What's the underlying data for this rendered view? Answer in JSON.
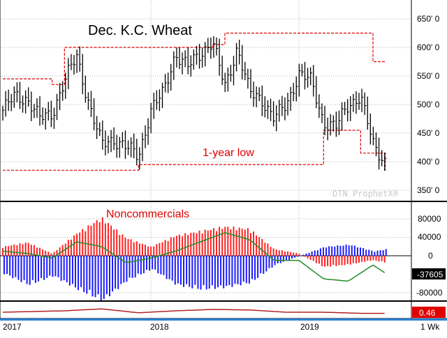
{
  "chart_data": [
    {
      "type": "line",
      "title": "Dec. K.C. Wheat",
      "watermark": "DTN ProphetX®",
      "annotation": "1-year low",
      "x_axis": {
        "ticks": [
          "2017",
          "2018",
          "2019"
        ],
        "timeframe": "1 Wk"
      },
      "y_axis": {
        "ticks": [
          "650' 0",
          "600' 0",
          "550' 0",
          "500' 0",
          "450' 0",
          "400' 0",
          "350' 0"
        ],
        "ylim": [
          340,
          660
        ]
      },
      "colors": {
        "price": "#000000",
        "low_line": "#e00000",
        "grid": "#b0b0b0"
      },
      "series": [
        {
          "role": "weekly price bars (close)",
          "x": [
            "2017-01",
            "2017-02",
            "2017-03",
            "2017-04",
            "2017-05",
            "2017-06",
            "2017-07",
            "2017-08",
            "2017-09",
            "2017-10",
            "2017-11",
            "2017-12",
            "2018-01",
            "2018-02",
            "2018-03",
            "2018-04",
            "2018-05",
            "2018-06",
            "2018-07",
            "2018-08",
            "2018-09",
            "2018-10",
            "2018-11",
            "2018-12",
            "2019-01",
            "2019-02",
            "2019-03",
            "2019-04",
            "2019-05",
            "2019-06",
            "2019-07",
            "2019-08"
          ],
          "values": [
            490,
            515,
            510,
            475,
            485,
            540,
            585,
            500,
            430,
            440,
            425,
            410,
            490,
            520,
            590,
            565,
            590,
            610,
            530,
            600,
            520,
            510,
            475,
            500,
            555,
            540,
            470,
            460,
            500,
            515,
            430,
            400
          ]
        },
        {
          "role": "1-year low",
          "x": [
            "2017-01",
            "2017-05",
            "2017-06",
            "2017-09",
            "2017-12",
            "2018-03",
            "2018-06",
            "2018-07",
            "2018-09",
            "2018-12",
            "2019-03",
            "2019-04",
            "2019-06",
            "2019-07",
            "2019-08"
          ],
          "values": [
            385,
            385,
            385,
            385,
            395,
            395,
            395,
            395,
            395,
            395,
            455,
            455,
            415,
            415,
            385
          ]
        },
        {
          "role": "1-year high",
          "x": [
            "2017-01",
            "2017-05",
            "2017-06",
            "2017-09",
            "2017-12",
            "2018-03",
            "2018-06",
            "2018-07",
            "2018-09",
            "2018-12",
            "2019-03",
            "2019-04",
            "2019-06",
            "2019-07",
            "2019-08"
          ],
          "values": [
            545,
            535,
            600,
            600,
            600,
            600,
            605,
            625,
            625,
            625,
            625,
            625,
            625,
            575,
            575
          ]
        }
      ]
    },
    {
      "type": "bar",
      "title": "Noncommercials",
      "y_axis": {
        "ticks": [
          "80000",
          "40000",
          "0",
          "-80000"
        ],
        "ylim": [
          -105000,
          105000
        ]
      },
      "last_value_label": "-37605",
      "colors": {
        "long": "#ff2020",
        "short": "#1a1aff",
        "net": "#228b22"
      },
      "series": [
        {
          "name": "long",
          "x": [
            "2017-01",
            "2017-03",
            "2017-05",
            "2017-07",
            "2017-09",
            "2017-11",
            "2018-01",
            "2018-03",
            "2018-05",
            "2018-07",
            "2018-09",
            "2018-11",
            "2019-01",
            "2019-03",
            "2019-05",
            "2019-07",
            "2019-08"
          ],
          "values": [
            20000,
            30000,
            5000,
            50000,
            85000,
            40000,
            20000,
            45000,
            55000,
            65000,
            60000,
            15000,
            5000,
            -25000,
            -20000,
            -10000,
            -15000
          ]
        },
        {
          "name": "short",
          "x": [
            "2017-01",
            "2017-03",
            "2017-05",
            "2017-07",
            "2017-09",
            "2017-11",
            "2018-01",
            "2018-03",
            "2018-05",
            "2018-07",
            "2018-09",
            "2018-11",
            "2019-01",
            "2019-03",
            "2019-05",
            "2019-07",
            "2019-08"
          ],
          "values": [
            -40000,
            -65000,
            -45000,
            -75000,
            -100000,
            -55000,
            -30000,
            -65000,
            -75000,
            -70000,
            -60000,
            -20000,
            0,
            20000,
            25000,
            10000,
            15000
          ]
        },
        {
          "name": "net",
          "x": [
            "2017-01",
            "2017-03",
            "2017-05",
            "2017-07",
            "2017-09",
            "2017-11",
            "2018-01",
            "2018-03",
            "2018-05",
            "2018-07",
            "2018-09",
            "2018-11",
            "2019-01",
            "2019-03",
            "2019-05",
            "2019-07",
            "2019-08"
          ],
          "values": [
            10000,
            5000,
            -5000,
            30000,
            20000,
            -15000,
            -5000,
            10000,
            30000,
            50000,
            35000,
            -10000,
            -10000,
            -50000,
            -55000,
            -20000,
            -37605
          ]
        }
      ]
    },
    {
      "type": "line",
      "last_value_label": "0.46",
      "colors": {
        "line": "#b22222"
      },
      "series": [
        {
          "x": [
            "2017-01",
            "2017-06",
            "2017-09",
            "2017-12",
            "2018-03",
            "2018-06",
            "2018-09",
            "2018-12",
            "2019-03",
            "2019-06",
            "2019-08"
          ],
          "values": [
            0.5,
            0.55,
            0.62,
            0.48,
            0.55,
            0.6,
            0.58,
            0.5,
            0.5,
            0.46,
            0.46
          ]
        }
      ]
    }
  ]
}
